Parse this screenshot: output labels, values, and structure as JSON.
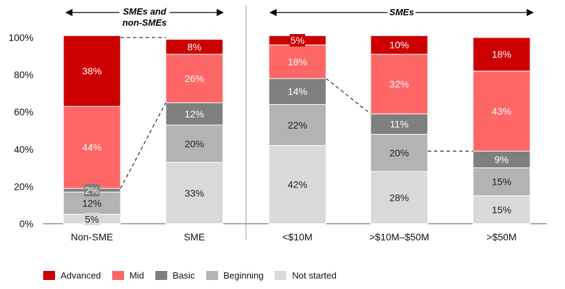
{
  "chart_data": {
    "type": "bar",
    "stacked": true,
    "categories": [
      "Non-SME",
      "SME",
      "<$10M",
      ">$10M–$50M",
      ">$50M"
    ],
    "series": [
      {
        "name": "Not started",
        "color": "#d9d9d9",
        "values": [
          5,
          33,
          42,
          28,
          15
        ]
      },
      {
        "name": "Beginning",
        "color": "#b3b3b3",
        "values": [
          12,
          20,
          22,
          20,
          15
        ]
      },
      {
        "name": "Basic",
        "color": "#7f7f7f",
        "values": [
          2,
          12,
          14,
          11,
          9
        ]
      },
      {
        "name": "Mid",
        "color": "#ff6666",
        "values": [
          44,
          26,
          18,
          32,
          43
        ]
      },
      {
        "name": "Advanced",
        "color": "#cc0000",
        "values": [
          38,
          8,
          5,
          10,
          18
        ]
      }
    ],
    "ylim": [
      0,
      100
    ],
    "yticks": [
      "0%",
      "20%",
      "40%",
      "60%",
      "80%",
      "100%"
    ],
    "group_labels": [
      {
        "text": "SMEs and non-SMEs",
        "categories": [
          0,
          1
        ]
      },
      {
        "text": "SMEs",
        "categories": [
          2,
          3,
          4
        ]
      }
    ],
    "connectors": [
      {
        "from_category": 0,
        "to_category": 1,
        "level": 19
      },
      {
        "from_category": 2,
        "to_category": 3,
        "level": 78
      },
      {
        "from_category": 3,
        "to_category": 4,
        "level": 39
      }
    ],
    "legend_order": [
      "Advanced",
      "Mid",
      "Basic",
      "Beginning",
      "Not started"
    ],
    "legend_position": "bottom-left"
  }
}
